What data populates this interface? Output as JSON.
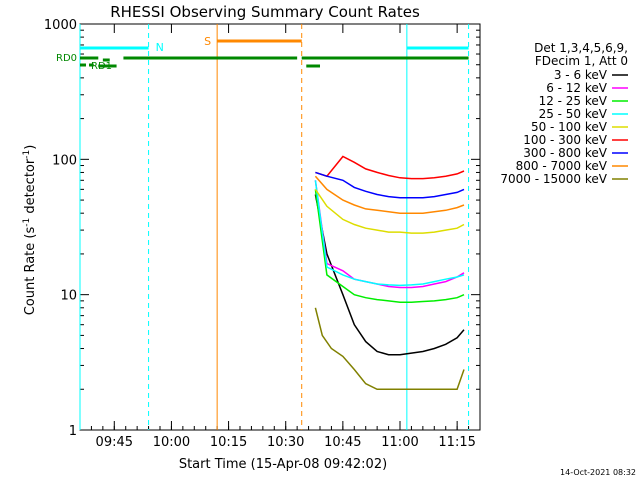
{
  "chart_data": {
    "type": "line",
    "title": "RHESSI Observing Summary Count Rates",
    "xlabel": "Start Time (15-Apr-08 09:42:02)",
    "ylabel_main": "Count Rate (s",
    "ylabel_sup1": "-1",
    "ylabel_mid": " detector",
    "ylabel_sup2": "-1",
    "ylabel_end": ")",
    "y_scale": "log",
    "ylim": [
      1,
      1000
    ],
    "xlim_minutes": [
      9.6,
      11.35
    ],
    "x_ticks": [
      {
        "t": 9.75,
        "label": "09:45"
      },
      {
        "t": 10.0,
        "label": "10:00"
      },
      {
        "t": 10.25,
        "label": "10:15"
      },
      {
        "t": 10.5,
        "label": "10:30"
      },
      {
        "t": 10.75,
        "label": "10:45"
      },
      {
        "t": 11.0,
        "label": "11:00"
      },
      {
        "t": 11.25,
        "label": "11:15"
      }
    ],
    "y_ticks": [
      {
        "v": 1,
        "label": "1"
      },
      {
        "v": 10,
        "label": "10"
      },
      {
        "v": 100,
        "label": "100"
      },
      {
        "v": 1000,
        "label": "1000"
      }
    ],
    "legend_header": [
      "Det 1,3,4,5,6,9,",
      "FDecim 1, Att 0"
    ],
    "series": [
      {
        "name": "3 - 6 keV",
        "color": "#000000",
        "x": [
          10.63,
          10.68,
          10.75,
          10.8,
          10.85,
          10.9,
          10.95,
          11.0,
          11.05,
          11.1,
          11.15,
          11.2,
          11.25,
          11.28
        ],
        "y": [
          55,
          20,
          10,
          6,
          4.5,
          3.8,
          3.6,
          3.6,
          3.7,
          3.8,
          4.0,
          4.3,
          4.8,
          5.5
        ]
      },
      {
        "name": "6 - 12 keV",
        "color": "#ff00ff",
        "x": [
          10.63,
          10.68,
          10.75,
          10.8,
          10.85,
          10.9,
          10.95,
          11.0,
          11.05,
          11.1,
          11.15,
          11.2,
          11.25,
          11.28
        ],
        "y": [
          70,
          17,
          15,
          13,
          12.5,
          12,
          11.5,
          11.3,
          11.3,
          11.5,
          12,
          12.5,
          13.5,
          14.5
        ]
      },
      {
        "name": "12 - 25 keV",
        "color": "#00ee00",
        "x": [
          10.63,
          10.68,
          10.75,
          10.8,
          10.85,
          10.9,
          10.95,
          11.0,
          11.05,
          11.1,
          11.15,
          11.2,
          11.25,
          11.28
        ],
        "y": [
          60,
          14,
          11.5,
          10,
          9.5,
          9.2,
          9,
          8.8,
          8.8,
          8.9,
          9,
          9.2,
          9.5,
          10
        ]
      },
      {
        "name": "25 - 50 keV",
        "color": "#00ffff",
        "x": [
          10.63,
          10.68,
          10.75,
          10.8,
          10.85,
          10.9,
          10.95,
          11.0,
          11.05,
          11.1,
          11.15,
          11.2,
          11.25,
          11.28
        ],
        "y": [
          70,
          16,
          14,
          13,
          12.5,
          12,
          11.8,
          11.7,
          11.8,
          12,
          12.5,
          13,
          13.5,
          14
        ]
      },
      {
        "name": "50 - 100 keV",
        "color": "#dddd00",
        "x": [
          10.63,
          10.68,
          10.75,
          10.8,
          10.85,
          10.9,
          10.95,
          11.0,
          11.05,
          11.1,
          11.15,
          11.2,
          11.25,
          11.28
        ],
        "y": [
          60,
          45,
          36,
          33,
          31,
          30,
          29,
          29,
          28.5,
          28.5,
          29,
          30,
          31,
          33
        ]
      },
      {
        "name": "100 - 300 keV",
        "color": "#ff0000",
        "x": [
          10.63,
          10.68,
          10.75,
          10.8,
          10.85,
          10.9,
          10.95,
          11.0,
          11.05,
          11.1,
          11.15,
          11.2,
          11.25,
          11.28
        ],
        "y": [
          80,
          75,
          105,
          95,
          85,
          80,
          76,
          73,
          72,
          72,
          73,
          75,
          78,
          82
        ]
      },
      {
        "name": "300 - 800 keV",
        "color": "#0000ff",
        "x": [
          10.63,
          10.68,
          10.75,
          10.8,
          10.85,
          10.9,
          10.95,
          11.0,
          11.05,
          11.1,
          11.15,
          11.2,
          11.25,
          11.28
        ],
        "y": [
          80,
          75,
          70,
          62,
          58,
          55,
          53,
          52,
          52,
          52,
          53,
          55,
          57,
          60
        ]
      },
      {
        "name": "800 - 7000 keV",
        "color": "#ff8800",
        "x": [
          10.63,
          10.68,
          10.75,
          10.8,
          10.85,
          10.9,
          10.95,
          11.0,
          11.05,
          11.1,
          11.15,
          11.2,
          11.25,
          11.28
        ],
        "y": [
          75,
          60,
          50,
          46,
          43,
          42,
          41,
          40,
          40,
          40,
          41,
          42,
          44,
          46
        ]
      },
      {
        "name": "7000 - 15000 keV",
        "color": "#808000",
        "x": [
          10.63,
          10.66,
          10.7,
          10.75,
          10.8,
          10.85,
          10.9,
          10.95,
          11.0,
          11.05,
          11.1,
          11.15,
          11.2,
          11.25,
          11.28
        ],
        "y": [
          8,
          5,
          4,
          3.5,
          2.8,
          2.2,
          2,
          2,
          2,
          2,
          2,
          2,
          2,
          2,
          2.8
        ]
      }
    ],
    "annotations": {
      "N_label": "N",
      "S_label": "S",
      "RD0_label": "RD0",
      "RD1_label": "RD1",
      "night_color": "#00ffff",
      "saa_color": "#ff8800",
      "flag_color": "#008800",
      "night_intervals": [
        [
          9.6,
          9.9
        ],
        [
          11.03,
          11.3
        ]
      ],
      "saa_intervals": [
        [
          10.2,
          10.57
        ]
      ]
    },
    "grid": false
  },
  "footer": {
    "timestamp": "14-Oct-2021 08:32"
  }
}
